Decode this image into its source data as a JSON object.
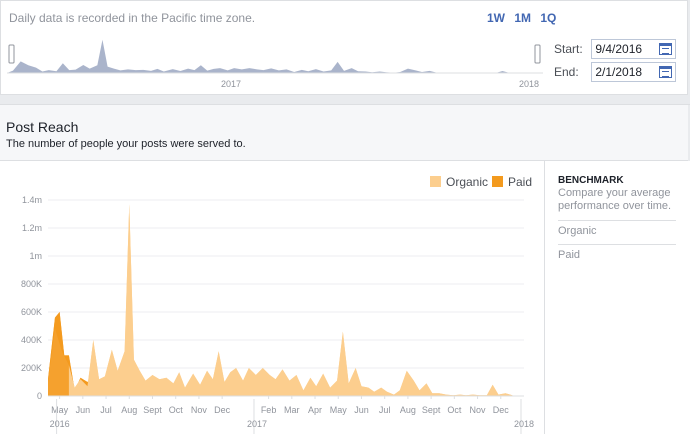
{
  "header": {
    "timezone_note": "Daily data is recorded in the Pacific time zone.",
    "ranges": [
      "1W",
      "1M",
      "1Q"
    ],
    "start_label": "Start:",
    "start_value": "9/4/2016",
    "end_label": "End:",
    "end_value": "2/1/2018",
    "mini_year_labels": [
      "2017",
      "2018"
    ]
  },
  "section": {
    "title": "Post Reach",
    "subtitle": "The number of people your posts were served to."
  },
  "benchmark": {
    "title": "BENCHMARK",
    "description": "Compare your average performance over time.",
    "items": [
      "Organic",
      "Paid"
    ]
  },
  "chart_data": {
    "type": "area",
    "legend": [
      "Organic",
      "Paid"
    ],
    "legend_position": "top-right",
    "colors": {
      "organic": "#fcce8e",
      "paid": "#f39a1e"
    },
    "y_ticks": [
      "0",
      "200K",
      "400K",
      "600K",
      "800K",
      "1m",
      "1.2m",
      "1.4m"
    ],
    "ylim": [
      0,
      1400000
    ],
    "x_ticks": [
      "May",
      "Jun",
      "Jul",
      "Aug",
      "Sept",
      "Oct",
      "Nov",
      "Dec",
      "Feb",
      "Mar",
      "Apr",
      "May",
      "Jun",
      "Jul",
      "Aug",
      "Sept",
      "Oct",
      "Nov",
      "Dec"
    ],
    "x_tick_index": [
      1,
      3,
      5,
      7,
      9,
      11,
      13,
      15,
      19,
      21,
      23,
      25,
      27,
      29,
      31,
      33,
      35,
      37,
      39
    ],
    "year_labels": [
      "2016",
      "2017",
      "2018"
    ],
    "year_label_index": [
      1,
      18,
      41
    ],
    "x_index_range": [
      0,
      41
    ],
    "organic": [
      [
        0,
        100000
      ],
      [
        0.6,
        480000
      ],
      [
        1.2,
        320000
      ],
      [
        1.8,
        220000
      ],
      [
        2.3,
        60000
      ],
      [
        2.8,
        120000
      ],
      [
        3.4,
        70000
      ],
      [
        3.9,
        400000
      ],
      [
        4.4,
        120000
      ],
      [
        4.9,
        140000
      ],
      [
        5.5,
        330000
      ],
      [
        6.0,
        180000
      ],
      [
        6.6,
        320000
      ],
      [
        7.0,
        1370000
      ],
      [
        7.4,
        260000
      ],
      [
        7.9,
        180000
      ],
      [
        8.4,
        110000
      ],
      [
        9.0,
        150000
      ],
      [
        9.6,
        120000
      ],
      [
        10.2,
        130000
      ],
      [
        10.8,
        90000
      ],
      [
        11.3,
        170000
      ],
      [
        11.8,
        60000
      ],
      [
        12.5,
        160000
      ],
      [
        13.1,
        80000
      ],
      [
        13.7,
        180000
      ],
      [
        14.2,
        120000
      ],
      [
        14.7,
        320000
      ],
      [
        15.2,
        100000
      ],
      [
        15.7,
        170000
      ],
      [
        16.2,
        200000
      ],
      [
        16.8,
        110000
      ],
      [
        17.3,
        200000
      ],
      [
        17.9,
        150000
      ],
      [
        18.5,
        200000
      ],
      [
        19.1,
        150000
      ],
      [
        19.6,
        120000
      ],
      [
        20.2,
        190000
      ],
      [
        20.8,
        110000
      ],
      [
        21.4,
        150000
      ],
      [
        22.0,
        40000
      ],
      [
        22.6,
        130000
      ],
      [
        23.1,
        70000
      ],
      [
        23.7,
        160000
      ],
      [
        24.3,
        60000
      ],
      [
        24.9,
        110000
      ],
      [
        25.4,
        460000
      ],
      [
        25.9,
        90000
      ],
      [
        26.5,
        200000
      ],
      [
        27.0,
        70000
      ],
      [
        27.6,
        60000
      ],
      [
        28.1,
        30000
      ],
      [
        28.7,
        60000
      ],
      [
        29.2,
        30000
      ],
      [
        29.8,
        10000
      ],
      [
        30.3,
        40000
      ],
      [
        30.9,
        180000
      ],
      [
        31.5,
        110000
      ],
      [
        32.0,
        40000
      ],
      [
        32.6,
        90000
      ],
      [
        33.1,
        20000
      ],
      [
        33.7,
        20000
      ],
      [
        34.3,
        10000
      ],
      [
        34.9,
        5000
      ],
      [
        35.5,
        10000
      ],
      [
        36.0,
        5000
      ],
      [
        36.6,
        10000
      ],
      [
        37.2,
        5000
      ],
      [
        37.8,
        5000
      ],
      [
        38.3,
        80000
      ],
      [
        38.8,
        10000
      ],
      [
        39.4,
        20000
      ],
      [
        40.0,
        5000
      ]
    ],
    "paid": [
      [
        0,
        120000
      ],
      [
        0.6,
        560000
      ],
      [
        1.0,
        600000
      ],
      [
        1.4,
        290000
      ],
      [
        1.8,
        290000
      ],
      [
        2.3,
        40000
      ],
      [
        2.8,
        130000
      ],
      [
        3.4,
        100000
      ],
      [
        3.9,
        130000
      ],
      [
        4.2,
        0
      ]
    ]
  },
  "mini_chart": {
    "type": "area",
    "color": "#8e9bb9"
  }
}
